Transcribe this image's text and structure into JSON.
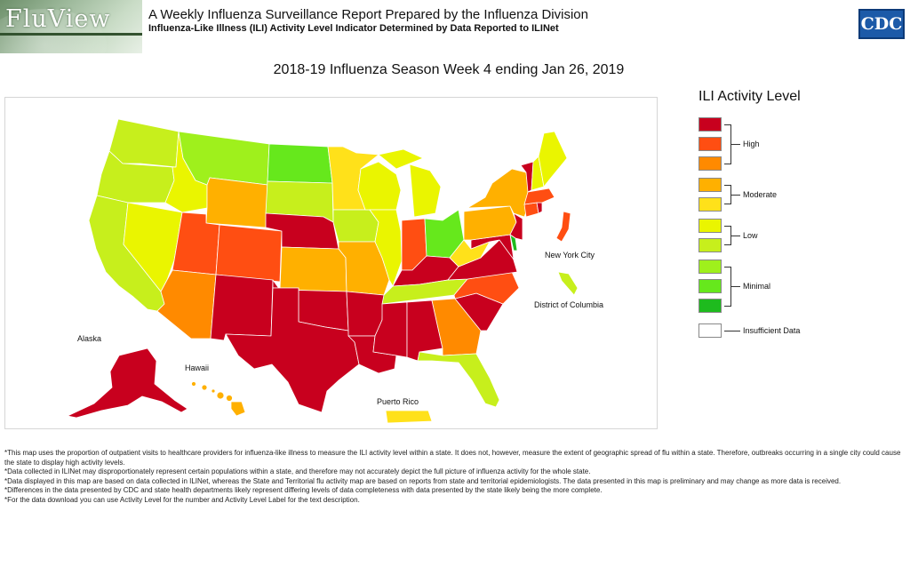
{
  "header": {
    "brand": "FluView",
    "title": "A Weekly Influenza Surveillance Report Prepared by the Influenza Division",
    "subtitle": "Influenza-Like Illness (ILI) Activity Level Indicator Determined by Data Reported to ILINet",
    "agency_logo": "CDC"
  },
  "map": {
    "title": "2018-19 Influenza Season Week 4 ending Jan 26, 2019",
    "labels": {
      "alaska": "Alaska",
      "hawaii": "Hawaii",
      "puerto_rico": "Puerto Rico",
      "new_york_city": "New York City",
      "district_of_columbia": "District of Columbia"
    },
    "level_colors": {
      "10": "#c8001e",
      "9": "#ff4e12",
      "8": "#ff8a00",
      "7": "#ffb000",
      "6": "#ffe11a",
      "5": "#eaf500",
      "4": "#c7ef1c",
      "3": "#9ff01c",
      "2": "#66e81c",
      "1": "#1ebb1e",
      "insufficient": "#ffffff"
    },
    "regions": [
      {
        "name": "Washington",
        "level": 4
      },
      {
        "name": "Oregon",
        "level": 4
      },
      {
        "name": "California",
        "level": 4
      },
      {
        "name": "Nevada",
        "level": 5
      },
      {
        "name": "Idaho",
        "level": 5
      },
      {
        "name": "Montana",
        "level": 3
      },
      {
        "name": "Wyoming",
        "level": 7
      },
      {
        "name": "Utah",
        "level": 9
      },
      {
        "name": "Arizona",
        "level": 8
      },
      {
        "name": "Colorado",
        "level": 9
      },
      {
        "name": "New Mexico",
        "level": 10
      },
      {
        "name": "North Dakota",
        "level": 2
      },
      {
        "name": "South Dakota",
        "level": 4
      },
      {
        "name": "Nebraska",
        "level": 10
      },
      {
        "name": "Kansas",
        "level": 7
      },
      {
        "name": "Oklahoma",
        "level": 10
      },
      {
        "name": "Texas",
        "level": 10
      },
      {
        "name": "Minnesota",
        "level": 6
      },
      {
        "name": "Iowa",
        "level": 4
      },
      {
        "name": "Missouri",
        "level": 7
      },
      {
        "name": "Arkansas",
        "level": 10
      },
      {
        "name": "Louisiana",
        "level": 10
      },
      {
        "name": "Wisconsin",
        "level": 5
      },
      {
        "name": "Illinois",
        "level": 5
      },
      {
        "name": "Michigan",
        "level": 5
      },
      {
        "name": "Indiana",
        "level": 9
      },
      {
        "name": "Ohio",
        "level": 2
      },
      {
        "name": "Kentucky",
        "level": 10
      },
      {
        "name": "Tennessee",
        "level": 4
      },
      {
        "name": "Mississippi",
        "level": 10
      },
      {
        "name": "Alabama",
        "level": 10
      },
      {
        "name": "Georgia",
        "level": 8
      },
      {
        "name": "Florida",
        "level": 4
      },
      {
        "name": "South Carolina",
        "level": 10
      },
      {
        "name": "North Carolina",
        "level": 9
      },
      {
        "name": "Virginia",
        "level": 10
      },
      {
        "name": "West Virginia",
        "level": 6
      },
      {
        "name": "Maryland",
        "level": 10
      },
      {
        "name": "Delaware",
        "level": 1
      },
      {
        "name": "Pennsylvania",
        "level": 7
      },
      {
        "name": "New Jersey",
        "level": 10
      },
      {
        "name": "New York",
        "level": 7
      },
      {
        "name": "Connecticut",
        "level": 9
      },
      {
        "name": "Rhode Island",
        "level": 10
      },
      {
        "name": "Massachusetts",
        "level": 9
      },
      {
        "name": "Vermont",
        "level": 10
      },
      {
        "name": "New Hampshire",
        "level": 5
      },
      {
        "name": "Maine",
        "level": 5
      },
      {
        "name": "Alaska",
        "level": 10
      },
      {
        "name": "Hawaii",
        "level": 7
      },
      {
        "name": "Puerto Rico",
        "level": 6
      },
      {
        "name": "New York City",
        "level": 9
      },
      {
        "name": "District of Columbia",
        "level": 4
      }
    ]
  },
  "legend": {
    "title": "ILI Activity Level",
    "groups": {
      "high": "High",
      "moderate": "Moderate",
      "low": "Low",
      "minimal": "Minimal",
      "insufficient": "Insufficient Data"
    }
  },
  "footnotes": [
    "*This map uses the proportion of outpatient visits to healthcare providers for influenza-like illness to measure the ILI activity level within a state. It does not, however, measure the extent of geographic spread of flu within a state. Therefore, outbreaks occurring in a single city could cause the state to display high activity levels.",
    "*Data collected in ILINet may disproportionately represent certain populations within a state, and therefore may not accurately depict the full picture of influenza activity for the whole state.",
    "*Data displayed in this map are based on data collected in ILINet, whereas the State and Territorial flu activity map are based on reports from state and territorial epidemiologists. The data presented in this map is preliminary and may change as more data is received.",
    "*Differences in the data presented by CDC and state health departments likely represent differing levels of data completeness with data presented by the state likely being the more complete.",
    "*For the data download you can use Activity Level for the number and Activity Level Label for the text description."
  ]
}
